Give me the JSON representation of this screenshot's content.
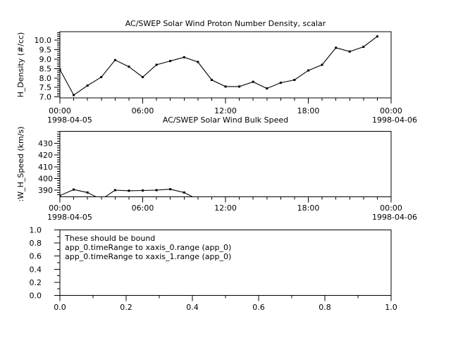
{
  "app": {
    "foreground_color": "#000000",
    "background_color": "#ffffff"
  },
  "chart_data": [
    {
      "type": "line",
      "title": "AC/SWEP  Solar Wind Proton Number Density, scalar",
      "ylabel": "H_Density (#/cc)",
      "x_unit": "hours since 1998-04-05 00:00",
      "x": [
        0,
        1,
        2,
        3,
        4,
        5,
        6,
        7,
        8,
        9,
        10,
        11,
        12,
        13,
        14,
        15,
        16,
        17,
        18,
        19,
        20,
        21,
        22,
        23
      ],
      "values": [
        8.45,
        7.1,
        7.6,
        8.05,
        8.95,
        8.6,
        8.05,
        8.7,
        8.9,
        9.1,
        8.85,
        7.9,
        7.55,
        7.55,
        7.8,
        7.45,
        7.75,
        7.9,
        8.4,
        8.7,
        9.6,
        9.4,
        9.65,
        10.2
      ],
      "xlim": [
        0,
        24
      ],
      "ylim": [
        6.95,
        10.45
      ],
      "xticks": {
        "major": [
          0,
          6,
          12,
          18,
          24
        ],
        "labels": [
          "00:00",
          "06:00",
          "12:00",
          "18:00",
          "00:00"
        ],
        "minor_step": 1
      },
      "yticks": {
        "major": [
          7.0,
          7.5,
          8.0,
          8.5,
          9.0,
          9.5,
          10.0
        ],
        "labels": [
          "7.0",
          "7.5",
          "8.0",
          "8.5",
          "9.0",
          "9.5",
          "10.0"
        ],
        "minor_step": 0.1
      },
      "date_left": "1998-04-05",
      "date_right": "1998-04-06",
      "grid": false,
      "legend": "none",
      "line_color": "#000000",
      "marker": "square"
    },
    {
      "type": "line",
      "title": "AC/SWEP  Solar Wind Bulk Speed",
      "ylabel": ":W_H_Speed (km/s)",
      "x_unit": "hours since 1998-04-05 00:00",
      "x": [
        0,
        1,
        2,
        3,
        4,
        5,
        6,
        7,
        8,
        9,
        10
      ],
      "values": [
        385.3,
        390.5,
        388,
        382,
        390,
        389.5,
        389.7,
        390,
        390.8,
        388,
        382
      ],
      "xlim": [
        0,
        24
      ],
      "ylim": [
        384.3,
        440.3
      ],
      "xticks": {
        "major": [
          0,
          6,
          12,
          18,
          24
        ],
        "labels": [
          "00:00",
          "06:00",
          "12:00",
          "18:00",
          "00:00"
        ],
        "minor_step": 1
      },
      "yticks": {
        "major": [
          390,
          400,
          410,
          420,
          430
        ],
        "labels": [
          "390",
          "400",
          "410",
          "420",
          "430"
        ],
        "minor_step": 2
      },
      "date_left": "1998-04-05",
      "date_right": "1998-04-06",
      "grid": false,
      "legend": "none",
      "line_color": "#000000",
      "marker": "square"
    },
    {
      "type": "line",
      "title": "",
      "ylabel": "",
      "x": [],
      "values": [],
      "annotation_lines": [
        "These should be bound",
        "app_0.timeRange to xaxis_0.range  (app_0)",
        "app_0.timeRange to xaxis_1.range  (app_0)"
      ],
      "xlim": [
        0,
        1
      ],
      "ylim": [
        0,
        1
      ],
      "xticks": {
        "major": [
          0,
          0.2,
          0.4,
          0.6,
          0.8,
          1.0
        ],
        "labels": [
          "0.0",
          "0.2",
          "0.4",
          "0.6",
          "0.8",
          "1.0"
        ],
        "minor_step": 0.1
      },
      "yticks": {
        "major": [
          0,
          0.2,
          0.4,
          0.6,
          0.8,
          1.0
        ],
        "labels": [
          "0.0",
          "0.2",
          "0.4",
          "0.6",
          "0.8",
          "1.0"
        ],
        "minor_step": 0.1
      },
      "grid": false,
      "legend": "none",
      "line_color": "#000000",
      "marker": "none"
    }
  ]
}
